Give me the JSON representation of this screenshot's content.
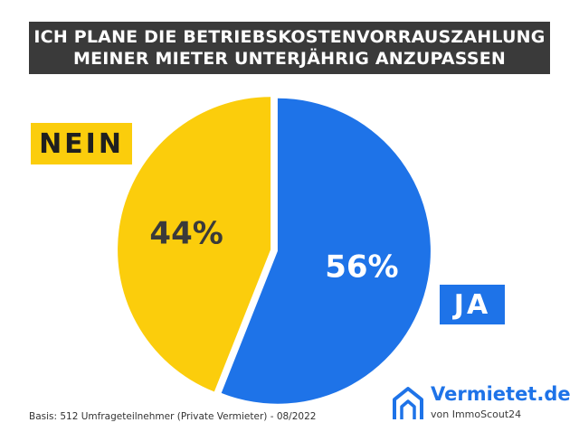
{
  "header": {
    "line1": "ICH PLANE DIE BETRIEBSKOSTENVORRAUSZAHLUNG",
    "line2": "MEINER MIETER UNTERJÄHRIG ANZUPASSEN"
  },
  "chart_data": {
    "type": "pie",
    "title": "ICH PLANE DIE BETRIEBSKOSTENVORRAUSZAHLUNG MEINER MIETER UNTERJÄHRIG ANZUPASSEN",
    "slices": [
      {
        "label": "JA",
        "value": 56,
        "value_label": "56%",
        "color": "#1e73e8",
        "label_color": "#ffffff"
      },
      {
        "label": "NEIN",
        "value": 44,
        "value_label": "44%",
        "color": "#fbcd0c",
        "label_color": "#3a3a3a"
      }
    ]
  },
  "footnote": "Basis: 512 Umfrageteilnehmer (Private Vermieter) - 08/2022",
  "brand": {
    "name": "Vermietet.de",
    "sub": "von ImmoScout24",
    "color": "#1e73e8"
  }
}
